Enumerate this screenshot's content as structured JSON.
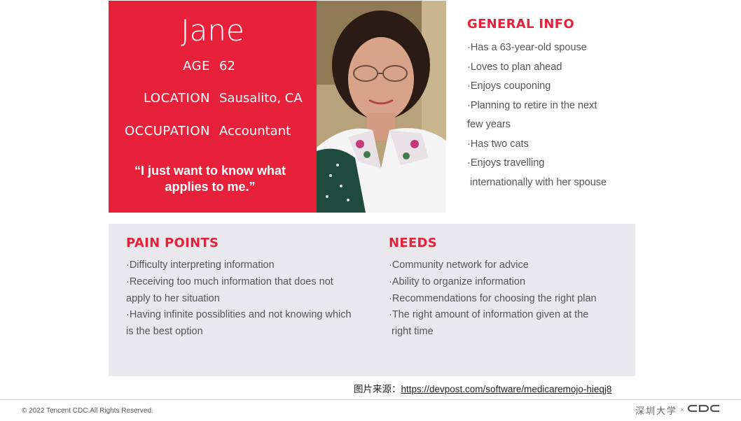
{
  "persona": {
    "name": "Jane",
    "age_label": "AGE",
    "age_value": "62",
    "location_label": "LOCATION",
    "location_value": "Sausalito, CA",
    "occupation_label": "OCCUPATION",
    "occupation_value": "Accountant",
    "quote_line1": "“I just want to know what",
    "quote_line2": "applies to me.”"
  },
  "general_info": {
    "title": "GENERAL INFO",
    "items": [
      "·Has a 63-year-old spouse",
      "·Loves to plan ahead",
      "·Enjoys couponing",
      "·Planning to retire in the next",
      "few years",
      "·Has two cats",
      "·Enjoys travelling",
      " internationally with her spouse"
    ]
  },
  "pain_points": {
    "title": "PAIN POINTS",
    "items": [
      "·Difficulty interpreting information",
      "·Receiving too much information that does not",
      "apply to her situation",
      "·Having infinite possiblities and not knowing which",
      "is the best option"
    ]
  },
  "needs": {
    "title": "NEEDS",
    "items": [
      "·Community network for advice",
      "·Ability to organize information",
      "·Recommendations for choosing the right plan",
      "·The right amount of information given at the",
      " right time"
    ]
  },
  "source": {
    "label": "图片来源：",
    "url": "https://devpost.com/software/medicaremojo-hieqj8"
  },
  "footer": {
    "copyright": "© 2022 Tencent CDC.All Rights Reserved.",
    "logo_cn": "深圳大学",
    "logo_sep": "×",
    "logo_en": "CDC"
  },
  "colors": {
    "accent": "#e8213a",
    "panel": "#e9e9ed"
  }
}
